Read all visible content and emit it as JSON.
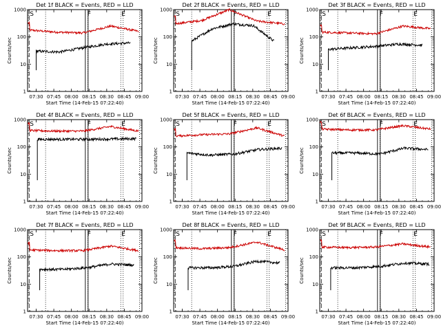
{
  "chart_data": {
    "type": "line",
    "layout": "3x3 grid of panels",
    "y_scale": "log",
    "ylim": [
      1,
      1000
    ],
    "y_tick_labels": [
      "1",
      "10",
      "100",
      "1000"
    ],
    "x_tick_labels": [
      "07:30",
      "07:45",
      "08:00",
      "08:15",
      "08:30",
      "08:45",
      "09:00"
    ],
    "xlim": [
      "07:22:40",
      "09:00"
    ],
    "xlabel": "Start Time (14-Feb-15 07:22:40)",
    "ylabel": "Counts/sec",
    "series_colors": {
      "events": "#000000",
      "lld": "#cc0000"
    },
    "markers": {
      "S": "07:24",
      "F": "08:13",
      "E": "08:42"
    },
    "dotted_lines": [
      "07:38",
      "08:14",
      "08:44",
      "08:58"
    ],
    "panels": [
      {
        "title": "Det 1f BLACK = Events, RED = LLD",
        "events_level": [
          30,
          28,
          40,
          55,
          60
        ],
        "lld_level": [
          180,
          150,
          140,
          250,
          160
        ],
        "events_span": [
          "07:30",
          "08:50"
        ]
      },
      {
        "title": "Det 2f BLACK = Events, RED = LLD",
        "events_level": [
          70,
          200,
          300,
          260,
          70
        ],
        "lld_level": [
          300,
          400,
          1000,
          380,
          300
        ],
        "events_span": [
          "07:38",
          "08:48"
        ]
      },
      {
        "title": "Det 3f BLACK = Events, RED = LLD",
        "events_level": [
          35,
          40,
          45,
          55,
          50
        ],
        "lld_level": [
          150,
          140,
          130,
          250,
          200
        ],
        "events_span": [
          "07:30",
          "08:50"
        ]
      },
      {
        "title": "Det 4f BLACK = Events, RED = LLD",
        "events_level": [
          190,
          190,
          190,
          195,
          200
        ],
        "lld_level": [
          400,
          380,
          380,
          560,
          380
        ],
        "events_span": [
          "07:31",
          "08:55"
        ]
      },
      {
        "title": "Det 5f BLACK = Events, RED = LLD",
        "events_level": [
          60,
          50,
          55,
          80,
          90
        ],
        "lld_level": [
          250,
          280,
          300,
          500,
          250
        ],
        "events_span": [
          "07:34",
          "08:55"
        ]
      },
      {
        "title": "Det 6f BLACK = Events, RED = LLD",
        "events_level": [
          60,
          60,
          55,
          90,
          80
        ],
        "lld_level": [
          450,
          420,
          420,
          600,
          450
        ],
        "events_span": [
          "07:33",
          "08:55"
        ]
      },
      {
        "title": "Det 7f BLACK = Events, RED = LLD",
        "events_level": [
          35,
          35,
          40,
          55,
          50
        ],
        "lld_level": [
          180,
          170,
          170,
          250,
          170
        ],
        "events_span": [
          "07:33",
          "08:53"
        ]
      },
      {
        "title": "Det 8f BLACK = Events, RED = LLD",
        "events_level": [
          40,
          40,
          45,
          70,
          60
        ],
        "lld_level": [
          220,
          200,
          220,
          350,
          180
        ],
        "events_span": [
          "07:35",
          "08:53"
        ]
      },
      {
        "title": "Det 9f BLACK = Events, RED = LLD",
        "events_level": [
          40,
          40,
          45,
          60,
          55
        ],
        "lld_level": [
          230,
          220,
          230,
          300,
          230
        ],
        "events_span": [
          "07:32",
          "08:56"
        ]
      }
    ]
  }
}
